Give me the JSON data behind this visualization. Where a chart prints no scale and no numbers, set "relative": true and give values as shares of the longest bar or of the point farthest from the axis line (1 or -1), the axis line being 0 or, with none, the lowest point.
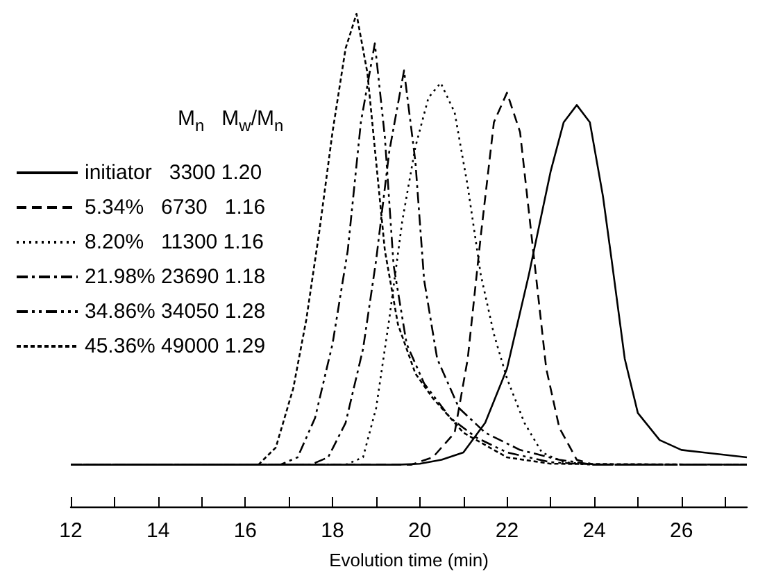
{
  "chart_data": {
    "type": "line",
    "relative": true,
    "xlabel": "Evolution time (min)",
    "legend_title": "M$_{n}$   M$_{w}$/M$_{n}$",
    "legend": "top left",
    "marker": "none",
    "grid": false,
    "tick_labels": "x",
    "xlim": [
      12,
      27.5
    ],
    "xticks": [
      12,
      {
        "value": 13,
        "label": null
      },
      14,
      {
        "value": 15,
        "label": null
      },
      16,
      {
        "value": 17,
        "label": null
      },
      18,
      {
        "value": 19,
        "label": null
      },
      20,
      {
        "value": 21,
        "label": null
      },
      22,
      {
        "value": 23,
        "label": null
      },
      24,
      {
        "value": 25,
        "label": null
      },
      26,
      {
        "value": 27,
        "label": null
      }
    ],
    "series": [
      {
        "name": "initiator   3300 1.20",
        "color": "#000000",
        "line_style": "solid",
        "x": [
          12,
          19.5,
          20,
          20.5,
          21,
          21.5,
          22,
          22.5,
          23,
          23.3,
          23.6,
          23.9,
          24.2,
          24.4,
          24.7,
          25,
          25.5,
          26,
          27.5
        ],
        "values": [
          0.085,
          0.085,
          0.087,
          0.095,
          0.11,
          0.17,
          0.28,
          0.47,
          0.68,
          0.78,
          0.815,
          0.78,
          0.63,
          0.5,
          0.3,
          0.19,
          0.135,
          0.115,
          0.1
        ]
      },
      {
        "name": "5.34%   6730   1.16",
        "color": "#000000",
        "line_style": "dashed",
        "x": [
          12,
          19.8,
          20.3,
          20.8,
          21.1,
          21.4,
          21.7,
          22,
          22.3,
          22.6,
          22.9,
          23.2,
          23.6,
          24,
          27.5
        ],
        "values": [
          0.085,
          0.085,
          0.1,
          0.15,
          0.3,
          0.55,
          0.78,
          0.84,
          0.76,
          0.52,
          0.28,
          0.16,
          0.095,
          0.085,
          0.085
        ]
      },
      {
        "name": "8.20%   11300 1.16",
        "color": "#000000",
        "line_style": "dotted",
        "x": [
          12,
          18.3,
          18.7,
          19,
          19.3,
          19.6,
          19.9,
          20.2,
          20.48,
          20.8,
          21.1,
          21.4,
          21.7,
          22,
          22.4,
          22.8,
          23.3,
          24,
          27.5
        ],
        "values": [
          0.085,
          0.085,
          0.1,
          0.2,
          0.38,
          0.58,
          0.73,
          0.83,
          0.86,
          0.8,
          0.65,
          0.47,
          0.35,
          0.26,
          0.17,
          0.11,
          0.09,
          0.085,
          0.085
        ]
      },
      {
        "name": "21.98% 23690 1.18",
        "color": "#000000",
        "line_style": "dashdot",
        "x": [
          12,
          17.5,
          17.9,
          18.3,
          18.7,
          19,
          19.3,
          19.64,
          19.9,
          20.1,
          20.4,
          20.9,
          21.5,
          22.3,
          23.2,
          24,
          27.5
        ],
        "values": [
          0.085,
          0.085,
          0.1,
          0.17,
          0.32,
          0.5,
          0.72,
          0.885,
          0.7,
          0.46,
          0.3,
          0.2,
          0.15,
          0.115,
          0.095,
          0.085,
          0.085
        ]
      },
      {
        "name": "34.86% 34050 1.28",
        "color": "#000000",
        "line_style": "dashdotdot",
        "x": [
          12,
          16.8,
          17.2,
          17.6,
          18,
          18.35,
          18.65,
          18.97,
          19.2,
          19.4,
          19.7,
          20.1,
          20.7,
          21.3,
          22,
          23,
          24,
          27.5
        ],
        "values": [
          0.085,
          0.085,
          0.1,
          0.18,
          0.33,
          0.52,
          0.78,
          0.94,
          0.75,
          0.49,
          0.33,
          0.25,
          0.18,
          0.14,
          0.11,
          0.09,
          0.085,
          0.085
        ]
      },
      {
        "name": "45.36% 49000 1.29",
        "color": "#000000",
        "line_style": "shortdash",
        "x": [
          12,
          16.3,
          16.7,
          17.1,
          17.4,
          17.7,
          18,
          18.3,
          18.55,
          18.8,
          19,
          19.2,
          19.5,
          19.9,
          20.3,
          21,
          22,
          23,
          27.5
        ],
        "values": [
          0.085,
          0.085,
          0.12,
          0.24,
          0.38,
          0.56,
          0.76,
          0.93,
          1.0,
          0.88,
          0.7,
          0.52,
          0.37,
          0.27,
          0.22,
          0.15,
          0.1,
          0.087,
          0.085
        ]
      }
    ]
  }
}
